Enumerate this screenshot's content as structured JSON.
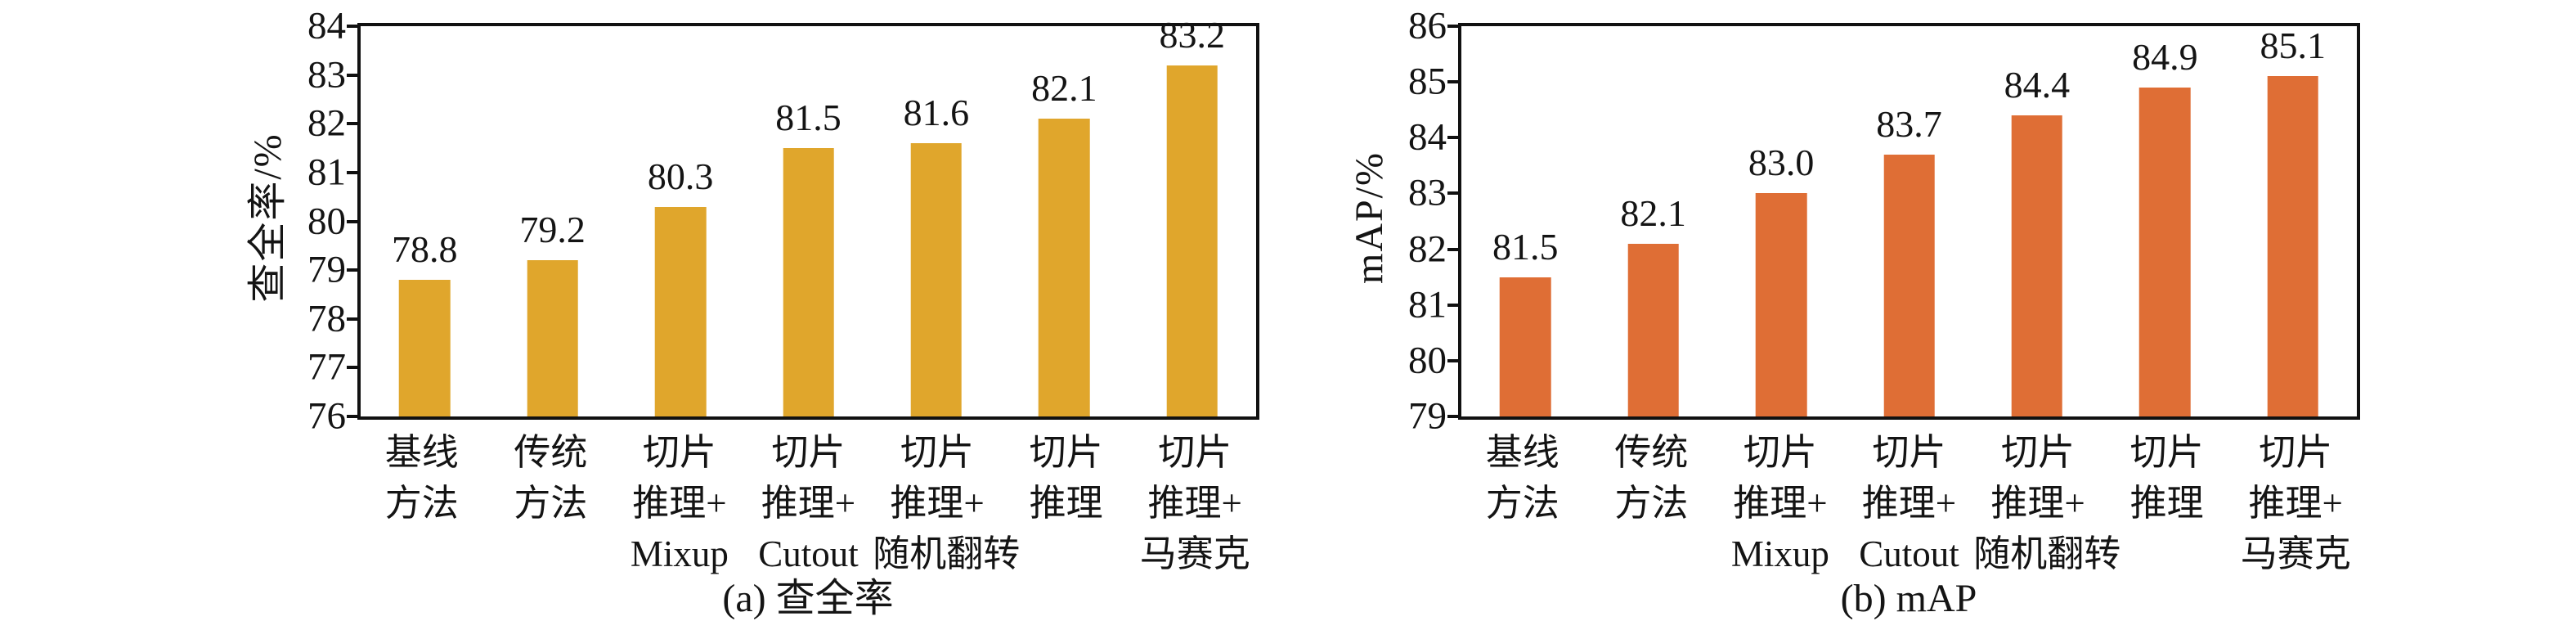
{
  "chart_data": [
    {
      "type": "bar",
      "title": "(a) 查全率",
      "xlabel": "",
      "ylabel": "查全率/%",
      "categories": [
        "基线方法",
        "传统方法",
        "切片推理+Mixup",
        "切片推理+Cutout",
        "切片推理+随机翻转",
        "切片推理",
        "切片推理+马赛克"
      ],
      "category_lines": [
        [
          "基线",
          "方法"
        ],
        [
          "传统",
          "方法"
        ],
        [
          "切片",
          "推理+",
          "Mixup"
        ],
        [
          "切片",
          "推理+",
          "Cutout"
        ],
        [
          "切片",
          "推理+",
          "随机翻转"
        ],
        [
          "切片",
          "推理"
        ],
        [
          "切片",
          "推理+",
          "马赛克"
        ]
      ],
      "values": [
        78.8,
        79.2,
        80.3,
        81.5,
        81.6,
        82.1,
        83.2
      ],
      "value_labels": [
        "78.8",
        "79.2",
        "80.3",
        "81.5",
        "81.6",
        "82.1",
        "83.2"
      ],
      "ylim": [
        76,
        84
      ],
      "yticks": [
        76,
        77,
        78,
        79,
        80,
        81,
        82,
        83,
        84
      ],
      "grid": false,
      "legend": null,
      "bar_color": "#E0A62C"
    },
    {
      "type": "bar",
      "title": "(b) mAP",
      "xlabel": "",
      "ylabel": "mAP/%",
      "categories": [
        "基线方法",
        "传统方法",
        "切片推理+Mixup",
        "切片推理+Cutout",
        "切片推理+随机翻转",
        "切片推理",
        "切片推理+马赛克"
      ],
      "category_lines": [
        [
          "基线",
          "方法"
        ],
        [
          "传统",
          "方法"
        ],
        [
          "切片",
          "推理+",
          "Mixup"
        ],
        [
          "切片",
          "推理+",
          "Cutout"
        ],
        [
          "切片",
          "推理+",
          "随机翻转"
        ],
        [
          "切片",
          "推理"
        ],
        [
          "切片",
          "推理+",
          "马赛克"
        ]
      ],
      "values": [
        81.5,
        82.1,
        83.0,
        83.7,
        84.4,
        84.9,
        85.1
      ],
      "value_labels": [
        "81.5",
        "82.1",
        "83.0",
        "83.7",
        "84.4",
        "84.9",
        "85.1"
      ],
      "ylim": [
        79,
        86
      ],
      "yticks": [
        79,
        80,
        81,
        82,
        83,
        84,
        85,
        86
      ],
      "grid": false,
      "legend": null,
      "bar_color": "#DF6E35"
    }
  ]
}
